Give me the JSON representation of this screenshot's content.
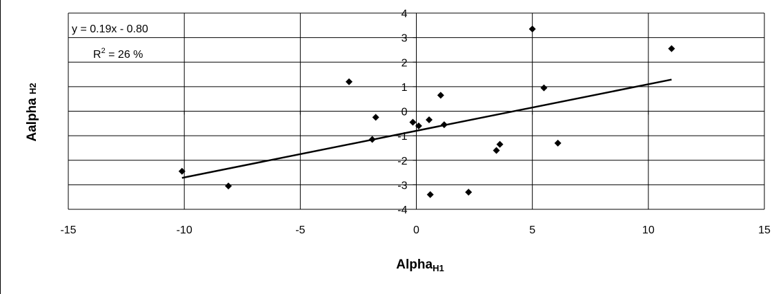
{
  "chart_data": {
    "type": "scatter",
    "xlabel": {
      "main": "Alpha",
      "sub": "H1"
    },
    "ylabel": {
      "main": "Aalpha ",
      "sub": "H2"
    },
    "xlim": [
      -15,
      15
    ],
    "ylim": [
      -4,
      4
    ],
    "x_ticks": [
      -15,
      -10,
      -5,
      0,
      5,
      10,
      15
    ],
    "y_ticks": [
      -4,
      -3,
      -2,
      -1,
      0,
      1,
      2,
      3,
      4
    ],
    "x_tick_labels": [
      "-15",
      "-10",
      "-5",
      "0",
      "5",
      "10",
      "15"
    ],
    "y_tick_labels": [
      "-4",
      "-3",
      "-2",
      "-1",
      "0",
      "1",
      "2",
      "3",
      "4"
    ],
    "grid": {
      "vertical": true,
      "horizontal": true
    },
    "marker": "diamond",
    "points": [
      {
        "x": -10.1,
        "y": -2.45
      },
      {
        "x": -8.1,
        "y": -3.05
      },
      {
        "x": -2.9,
        "y": 1.2
      },
      {
        "x": -1.9,
        "y": -1.15
      },
      {
        "x": -1.75,
        "y": -0.25
      },
      {
        "x": -0.15,
        "y": -0.45
      },
      {
        "x": 0.1,
        "y": -0.6
      },
      {
        "x": 0.55,
        "y": -0.35
      },
      {
        "x": 0.6,
        "y": -3.4
      },
      {
        "x": 1.05,
        "y": 0.65
      },
      {
        "x": 1.2,
        "y": -0.55
      },
      {
        "x": 2.25,
        "y": -3.3
      },
      {
        "x": 3.45,
        "y": -1.6
      },
      {
        "x": 3.6,
        "y": -1.35
      },
      {
        "x": 5.0,
        "y": 3.35
      },
      {
        "x": 5.5,
        "y": 0.95
      },
      {
        "x": 6.1,
        "y": -1.3
      },
      {
        "x": 11.0,
        "y": 2.55
      }
    ],
    "trendline": {
      "slope": 0.19,
      "intercept": -0.8,
      "x_start": -10.1,
      "x_end": 11.0
    },
    "annotation": {
      "equation": "y = 0.19x - 0.80",
      "r2_prefix": "R",
      "r2_sup": "2",
      "r2_suffix": " = 26 %"
    }
  }
}
